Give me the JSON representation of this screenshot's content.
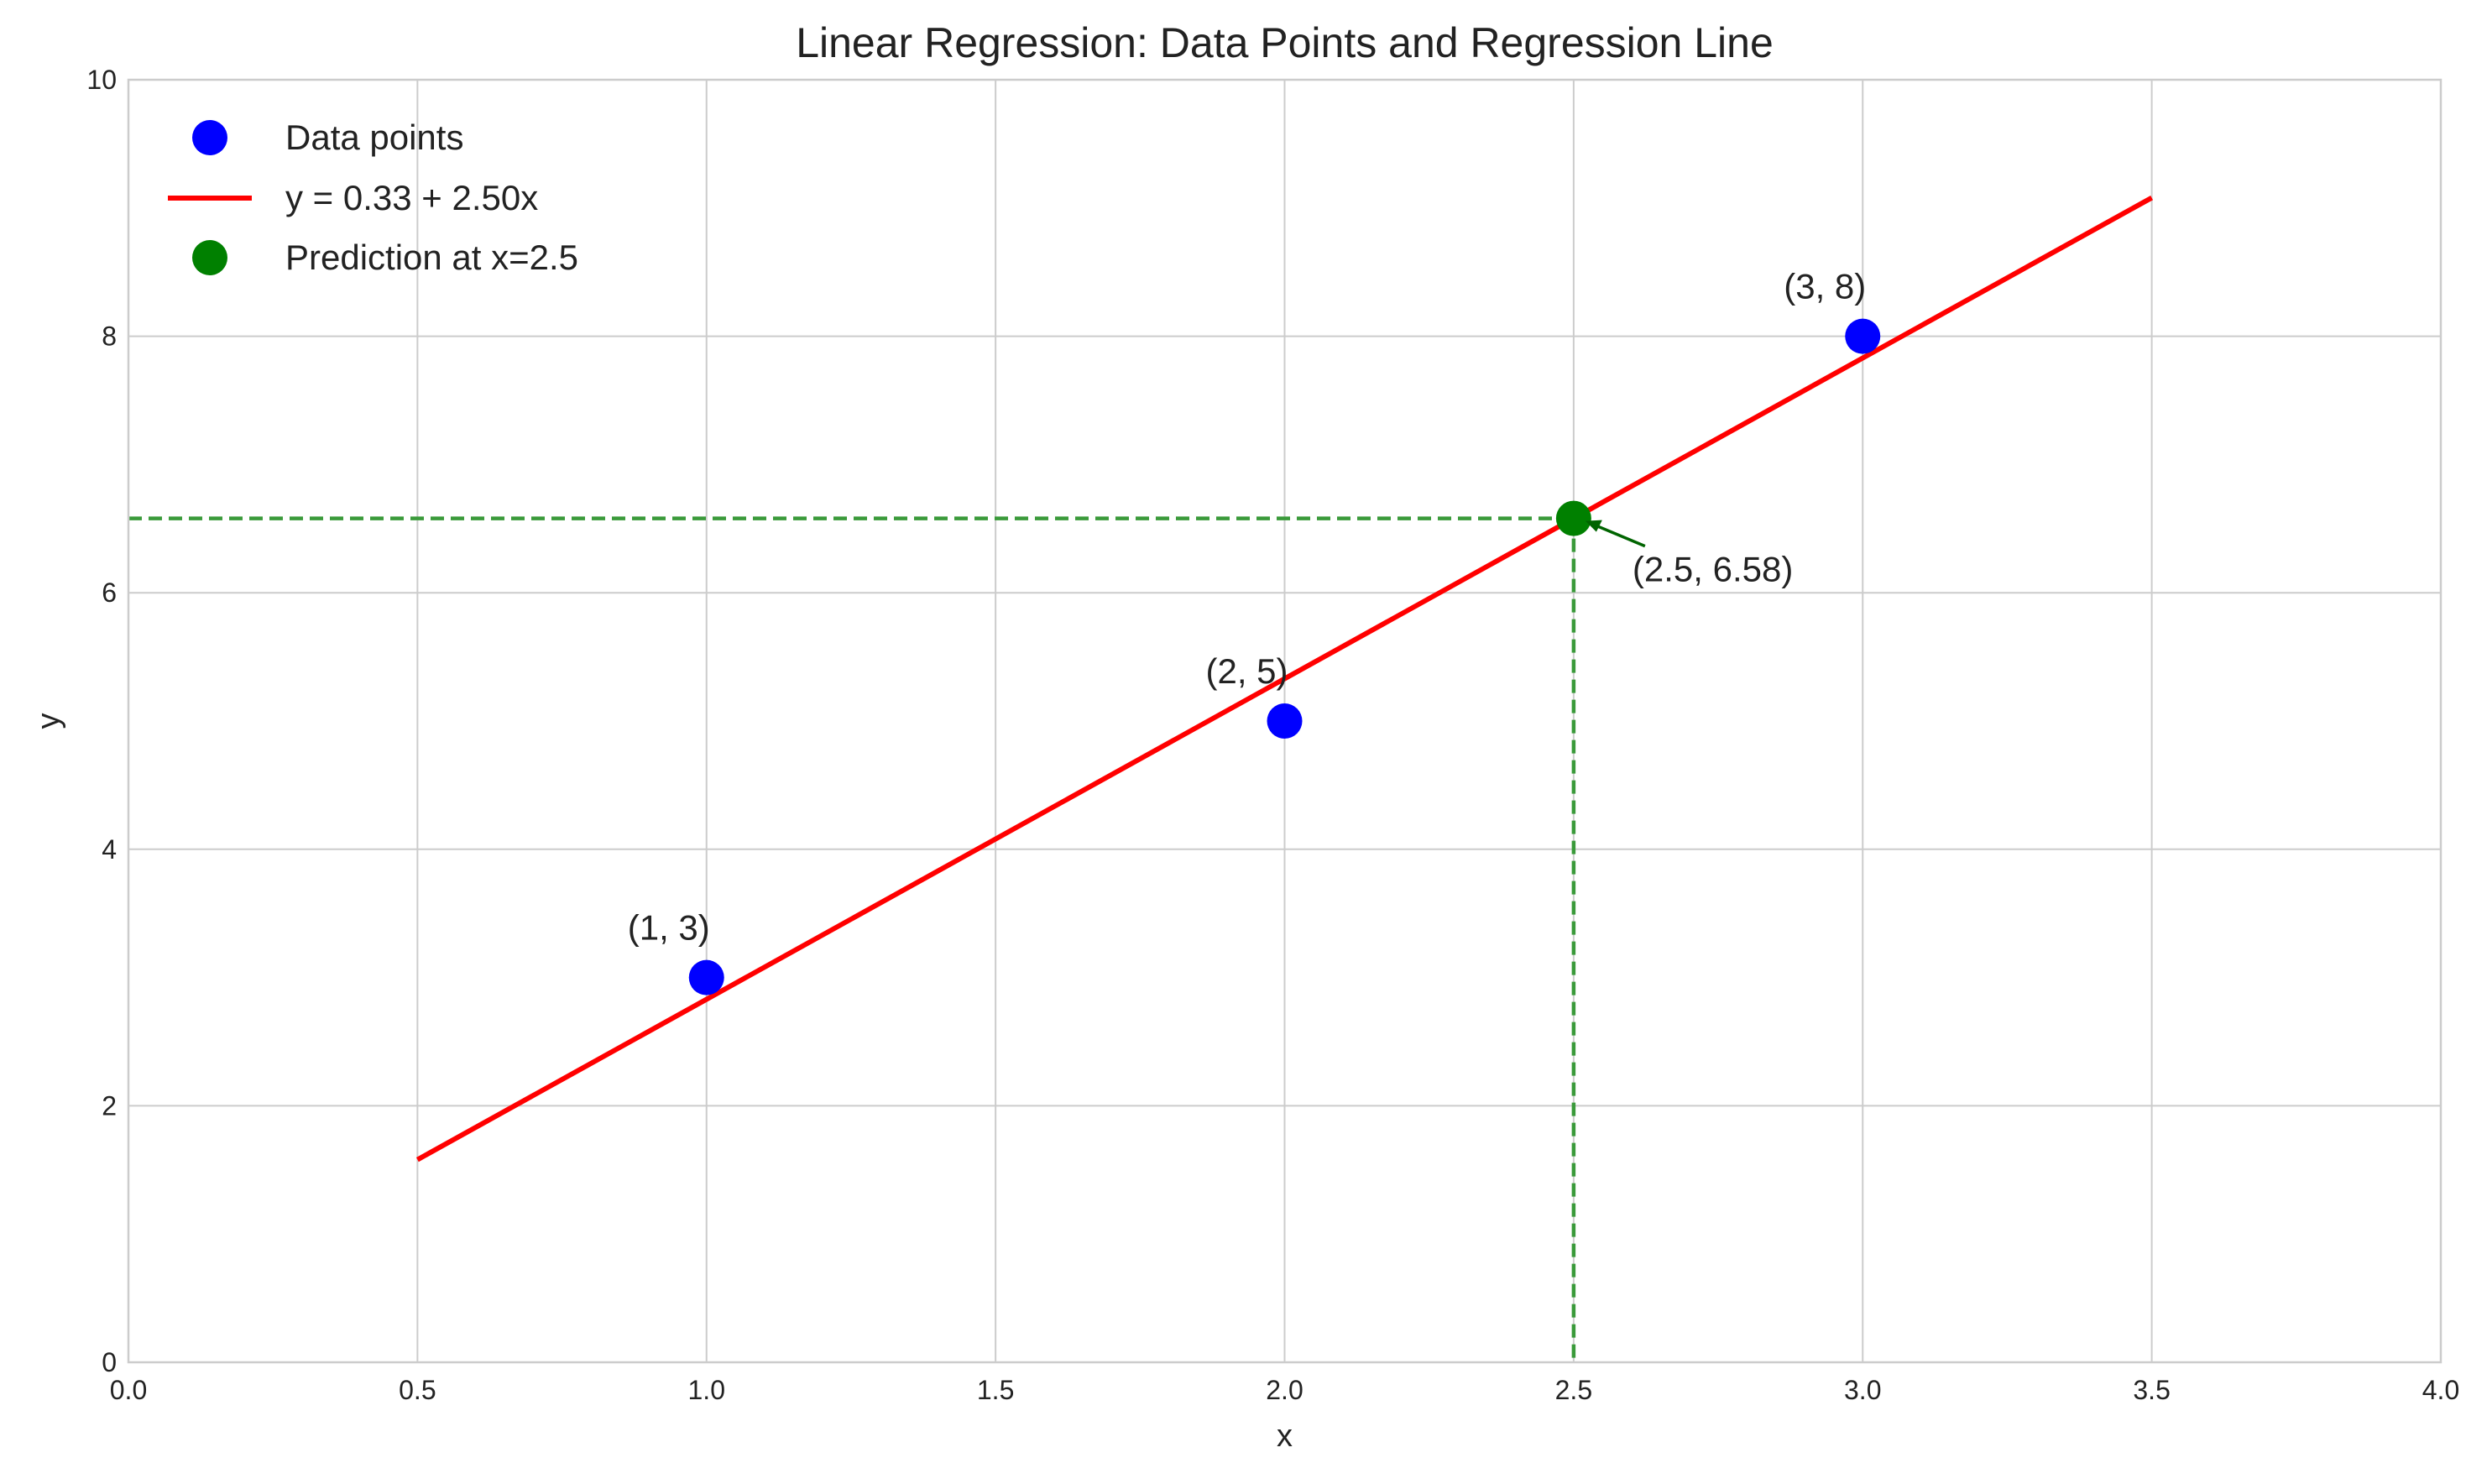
{
  "chart_data": {
    "type": "scatter",
    "title": "Linear Regression: Data Points and Regression Line",
    "xlabel": "x",
    "ylabel": "y",
    "xlim": [
      0.0,
      4.0
    ],
    "ylim": [
      0,
      10
    ],
    "x_ticks": [
      "0.0",
      "0.5",
      "1.0",
      "1.5",
      "2.0",
      "2.5",
      "3.0",
      "3.5",
      "4.0"
    ],
    "y_ticks": [
      "0",
      "2",
      "4",
      "6",
      "8",
      "10"
    ],
    "grid": true,
    "legend_position": "top-left",
    "series": [
      {
        "name": "Data points",
        "kind": "scatter",
        "color": "#0000ff",
        "points": [
          {
            "x": 1,
            "y": 3,
            "label": "(1, 3)"
          },
          {
            "x": 2,
            "y": 5,
            "label": "(2, 5)"
          },
          {
            "x": 3,
            "y": 8,
            "label": "(3, 8)"
          }
        ]
      },
      {
        "name": "y = 0.33 + 2.50x",
        "kind": "line",
        "color": "#ff0000",
        "intercept": 0.33,
        "slope": 2.5,
        "x_range": [
          0.5,
          3.5
        ]
      },
      {
        "name": "Prediction at x=2.5",
        "kind": "scatter",
        "color": "#008000",
        "points": [
          {
            "x": 2.5,
            "y": 6.58,
            "label": "(2.5, 6.58)"
          }
        ]
      }
    ],
    "reference_lines": {
      "color": "#3a9a3a",
      "vertical_x": 2.5,
      "horizontal_y": 6.58
    }
  }
}
